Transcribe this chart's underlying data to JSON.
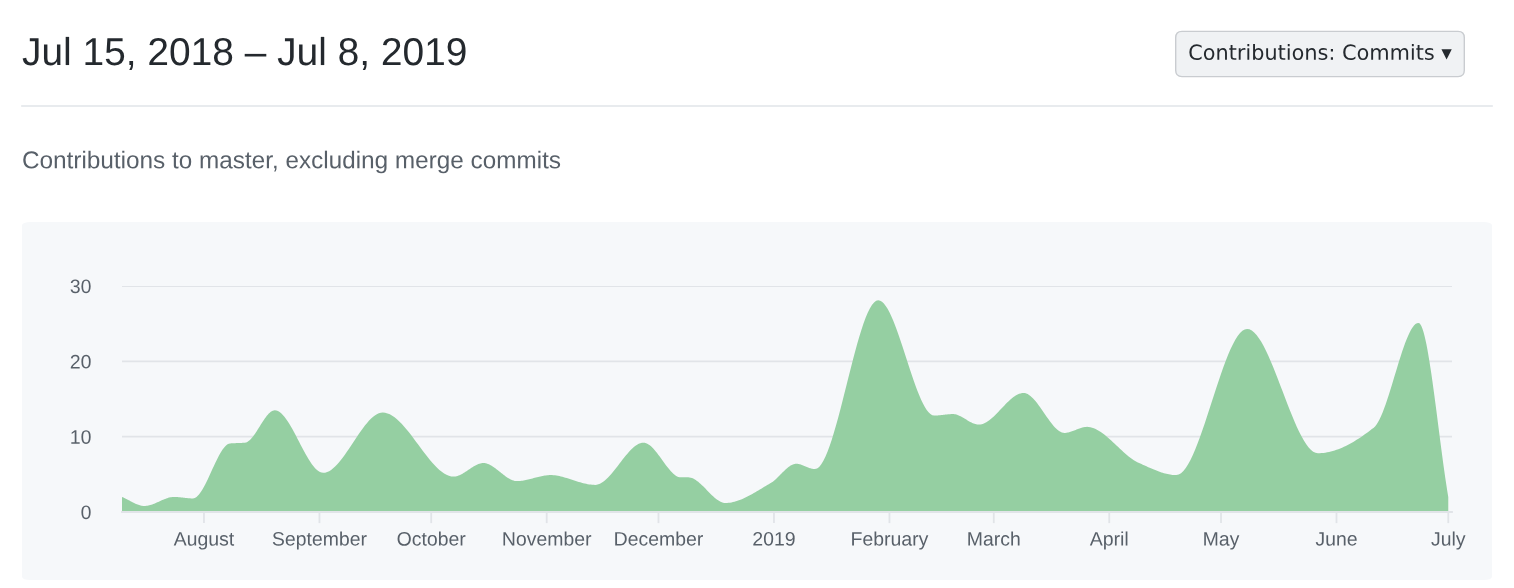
{
  "chart_data": {
    "type": "area",
    "title": "Jul 15, 2018 – Jul 8, 2019",
    "subtitle": "Contributions to master, excluding merge commits",
    "annotations": [
      "Contributions: Commits ▾"
    ],
    "x": [
      "2018-07-10",
      "2018-07-16",
      "2018-07-24",
      "2018-07-29",
      "2018-08-08",
      "2018-08-12",
      "2018-08-20",
      "2018-09-02",
      "2018-09-18",
      "2018-10-07",
      "2018-10-15",
      "2018-10-24",
      "2018-11-02",
      "2018-11-14",
      "2018-11-27",
      "2018-12-07",
      "2018-12-09",
      "2018-12-19",
      "2018-12-31",
      "2019-01-07",
      "2019-01-12",
      "2019-01-29",
      "2019-02-13",
      "2019-02-18",
      "2019-02-25",
      "2019-03-09",
      "2019-03-20",
      "2019-03-26",
      "2019-04-09",
      "2019-04-19",
      "2019-05-08",
      "2019-05-27",
      "2019-06-11",
      "2019-06-23",
      "2019-07-01"
    ],
    "series": [
      {
        "color": "#95cfa2",
        "values": [
          2.0,
          0.8,
          2.0,
          1.8,
          9.1,
          9.2,
          13.5,
          5.2,
          13.2,
          4.7,
          6.5,
          4.1,
          4.9,
          3.6,
          9.2,
          4.6,
          4.6,
          1.2,
          3.8,
          6.4,
          5.7,
          28.1,
          12.8,
          13.0,
          11.6,
          15.8,
          10.5,
          11.3,
          6.5,
          4.9,
          24.3,
          7.8,
          11.2,
          25.1,
          2.0
        ]
      }
    ],
    "xlim": [
      "2018-07-10",
      "2019-07-02"
    ],
    "xticks": [
      {
        "value": "2018-08-01",
        "label": "August"
      },
      {
        "value": "2018-09-01",
        "label": "September"
      },
      {
        "value": "2018-10-01",
        "label": "October"
      },
      {
        "value": "2018-11-01",
        "label": "November"
      },
      {
        "value": "2018-12-01",
        "label": "December"
      },
      {
        "value": "2019-01-01",
        "label": "2019"
      },
      {
        "value": "2019-02-01",
        "label": "February"
      },
      {
        "value": "2019-03-01",
        "label": "March"
      },
      {
        "value": "2019-04-01",
        "label": "April"
      },
      {
        "value": "2019-05-01",
        "label": "May"
      },
      {
        "value": "2019-06-01",
        "label": "June"
      },
      {
        "value": "2019-07-01",
        "label": "July"
      }
    ],
    "ylim": [
      0,
      30
    ],
    "yticks": [
      0,
      10,
      20,
      30
    ],
    "grid": "y"
  }
}
